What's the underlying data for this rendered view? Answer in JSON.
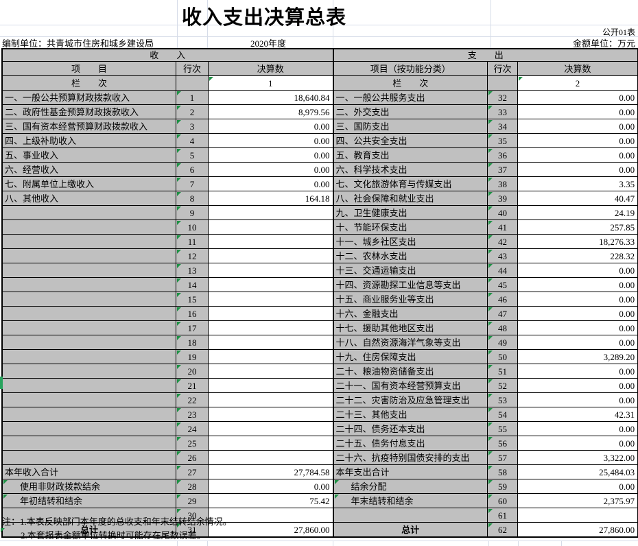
{
  "title": "收入支出决算总表",
  "meta": {
    "sheet_label": "公开01表",
    "prepared_by": "编制单位：共青城市住房和城乡建设局",
    "year": "2020年度",
    "unit": "金额单位：万元"
  },
  "table": {
    "income_header": "收　　入",
    "expense_header": "支　　出",
    "col_item_income": "项　　目",
    "col_line": "行次",
    "col_amount": "决算数",
    "col_item_expense": "项目（按功能分类）",
    "col_index_label": "栏　　次",
    "col_index_income": "1",
    "col_index_expense": "2",
    "income_rows": [
      {
        "label": "一、一般公共预算财政拨款收入",
        "line": "1",
        "value": "18,640.84"
      },
      {
        "label": "二、政府性基金预算财政拨款收入",
        "line": "2",
        "value": "8,979.56"
      },
      {
        "label": "三、国有资本经营预算财政拨款收入",
        "line": "3",
        "value": "0.00"
      },
      {
        "label": "四、上级补助收入",
        "line": "4",
        "value": "0.00"
      },
      {
        "label": "五、事业收入",
        "line": "5",
        "value": "0.00"
      },
      {
        "label": "六、经营收入",
        "line": "6",
        "value": "0.00"
      },
      {
        "label": "七、附属单位上缴收入",
        "line": "7",
        "value": "0.00"
      },
      {
        "label": "八、其他收入",
        "line": "8",
        "value": "164.18"
      },
      {
        "label": "",
        "line": "9",
        "value": ""
      },
      {
        "label": "",
        "line": "10",
        "value": ""
      },
      {
        "label": "",
        "line": "11",
        "value": ""
      },
      {
        "label": "",
        "line": "12",
        "value": ""
      },
      {
        "label": "",
        "line": "13",
        "value": ""
      },
      {
        "label": "",
        "line": "14",
        "value": ""
      },
      {
        "label": "",
        "line": "15",
        "value": ""
      },
      {
        "label": "",
        "line": "16",
        "value": ""
      },
      {
        "label": "",
        "line": "17",
        "value": ""
      },
      {
        "label": "",
        "line": "18",
        "value": ""
      },
      {
        "label": "",
        "line": "19",
        "value": ""
      },
      {
        "label": "",
        "line": "20",
        "value": ""
      },
      {
        "label": "",
        "line": "21",
        "value": ""
      },
      {
        "label": "",
        "line": "22",
        "value": ""
      },
      {
        "label": "",
        "line": "23",
        "value": ""
      },
      {
        "label": "",
        "line": "24",
        "value": ""
      },
      {
        "label": "",
        "line": "25",
        "value": ""
      },
      {
        "label": "",
        "line": "26",
        "value": ""
      },
      {
        "label": "本年收入合计",
        "line": "27",
        "value": "27,784.58"
      },
      {
        "label": "使用非财政拨款结余",
        "line": "28",
        "value": "0.00",
        "indent": true
      },
      {
        "label": "年初结转和结余",
        "line": "29",
        "value": "75.42",
        "indent": true
      },
      {
        "label": "",
        "line": "30",
        "value": ""
      },
      {
        "label": "总计",
        "line": "31",
        "value": "27,860.00",
        "total": true
      }
    ],
    "expense_rows": [
      {
        "label": "一、一般公共服务支出",
        "line": "32",
        "value": "0.00"
      },
      {
        "label": "二、外交支出",
        "line": "33",
        "value": "0.00"
      },
      {
        "label": "三、国防支出",
        "line": "34",
        "value": "0.00"
      },
      {
        "label": "四、公共安全支出",
        "line": "35",
        "value": "0.00"
      },
      {
        "label": "五、教育支出",
        "line": "36",
        "value": "0.00"
      },
      {
        "label": "六、科学技术支出",
        "line": "37",
        "value": "0.00"
      },
      {
        "label": "七、文化旅游体育与传媒支出",
        "line": "38",
        "value": "3.35"
      },
      {
        "label": "八、社会保障和就业支出",
        "line": "39",
        "value": "40.47"
      },
      {
        "label": "九、卫生健康支出",
        "line": "40",
        "value": "24.19"
      },
      {
        "label": "十、节能环保支出",
        "line": "41",
        "value": "257.85"
      },
      {
        "label": "十一、城乡社区支出",
        "line": "42",
        "value": "18,276.33"
      },
      {
        "label": "十二、农林水支出",
        "line": "43",
        "value": "228.32"
      },
      {
        "label": "十三、交通运输支出",
        "line": "44",
        "value": "0.00"
      },
      {
        "label": "十四、资源勘探工业信息等支出",
        "line": "45",
        "value": "0.00"
      },
      {
        "label": "十五、商业服务业等支出",
        "line": "46",
        "value": "0.00"
      },
      {
        "label": "十六、金融支出",
        "line": "47",
        "value": "0.00"
      },
      {
        "label": "十七、援助其他地区支出",
        "line": "48",
        "value": "0.00"
      },
      {
        "label": "十八、自然资源海洋气象等支出",
        "line": "49",
        "value": "0.00"
      },
      {
        "label": "十九、住房保障支出",
        "line": "50",
        "value": "3,289.20"
      },
      {
        "label": "二十、粮油物资储备支出",
        "line": "51",
        "value": "0.00"
      },
      {
        "label": "二十一、国有资本经营预算支出",
        "line": "52",
        "value": "0.00"
      },
      {
        "label": "二十二、灾害防治及应急管理支出",
        "line": "53",
        "value": "0.00"
      },
      {
        "label": "二十三、其他支出",
        "line": "54",
        "value": "42.31"
      },
      {
        "label": "二十四、债务还本支出",
        "line": "55",
        "value": "0.00"
      },
      {
        "label": "二十五、债务付息支出",
        "line": "56",
        "value": "0.00"
      },
      {
        "label": "二十六、抗疫特别国债安排的支出",
        "line": "57",
        "value": "3,322.00"
      },
      {
        "label": "本年支出合计",
        "line": "58",
        "value": "25,484.03"
      },
      {
        "label": "结余分配",
        "line": "59",
        "value": "0.00",
        "indent": true
      },
      {
        "label": "年末结转和结余",
        "line": "60",
        "value": "2,375.97",
        "indent": true
      },
      {
        "label": "",
        "line": "61",
        "value": ""
      },
      {
        "label": "总计",
        "line": "62",
        "value": "27,860.00",
        "total": true
      }
    ]
  },
  "notes": {
    "note1": "注：1.本表反映部门本年度的总收支和年末结转结余情况。",
    "note2": "2.本套报表金额单位转换时可能存在尾数误差。"
  },
  "colors": {
    "cell_gray": "#c0c0c0",
    "flag_green": "#1f9246",
    "gridline": "#d6dce8"
  }
}
